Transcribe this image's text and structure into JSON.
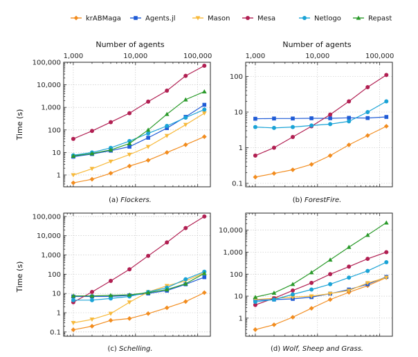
{
  "legend": {
    "placement": "top",
    "entries": [
      {
        "name": "krABMaga",
        "color": "#f28c1e",
        "marker": "diamond"
      },
      {
        "name": "Agents.jl",
        "color": "#1f5bd6",
        "marker": "square"
      },
      {
        "name": "Mason",
        "color": "#f7b93a",
        "marker": "triangle-down"
      },
      {
        "name": "Mesa",
        "color": "#b11f52",
        "marker": "circle"
      },
      {
        "name": "Netlogo",
        "color": "#1aa3d6",
        "marker": "circle"
      },
      {
        "name": "Repast",
        "color": "#2a9a2a",
        "marker": "triangle-up"
      }
    ]
  },
  "chart_data": [
    {
      "type": "line",
      "title": "",
      "caption_prefix": "(a)",
      "caption_name": "Flockers.",
      "xlabel": "Number of agents",
      "ylabel": "Time (s)",
      "xscale": "log",
      "yscale": "log",
      "xlim": [
        700,
        160000
      ],
      "ylim": [
        0.3,
        100000
      ],
      "xticks": [
        1000,
        10000,
        100000
      ],
      "xtick_labels": [
        "1,000",
        "10,000",
        "100,000"
      ],
      "yticks": [
        1,
        10,
        100,
        1000,
        10000,
        100000
      ],
      "ytick_labels": [
        "1",
        "10",
        "100",
        "1,000",
        "10,000",
        "100,000"
      ],
      "grid": true,
      "x": [
        1000,
        2000,
        4000,
        8000,
        16000,
        32000,
        64000,
        128000
      ],
      "series": [
        {
          "name": "krABMaga",
          "values": [
            0.45,
            0.65,
            1.2,
            2.5,
            4.5,
            10,
            22,
            50
          ]
        },
        {
          "name": "Agents.jl",
          "values": [
            6.5,
            8.5,
            12,
            18,
            45,
            120,
            380,
            1300
          ]
        },
        {
          "name": "Mason",
          "values": [
            1,
            1.9,
            4,
            8,
            18,
            55,
            170,
            550
          ]
        },
        {
          "name": "Mesa",
          "values": [
            40,
            90,
            220,
            550,
            1800,
            5500,
            25000,
            70000
          ]
        },
        {
          "name": "Netlogo",
          "values": [
            7.5,
            10,
            16,
            32,
            70,
            150,
            350,
            800
          ]
        },
        {
          "name": "Repast",
          "values": [
            7,
            9,
            13,
            25,
            100,
            500,
            2200,
            5000
          ]
        }
      ]
    },
    {
      "type": "line",
      "title": "",
      "caption_prefix": "(b)",
      "caption_name": "ForestFire.",
      "xlabel": "Number of agents",
      "ylabel": "",
      "xscale": "log",
      "yscale": "log",
      "xlim": [
        700,
        160000
      ],
      "ylim": [
        0.08,
        250
      ],
      "xticks": [
        1000,
        10000,
        100000
      ],
      "xtick_labels": [
        "1,000",
        "10,000",
        "100,000"
      ],
      "yticks": [
        0.1,
        1,
        10,
        100
      ],
      "ytick_labels": [
        "0.1",
        "1",
        "10",
        "100"
      ],
      "grid": true,
      "x": [
        1000,
        2000,
        4000,
        8000,
        16000,
        32000,
        64000,
        128000
      ],
      "series": [
        {
          "name": "krABMaga",
          "values": [
            0.15,
            0.19,
            0.24,
            0.34,
            0.6,
            1.2,
            2.2,
            4
          ]
        },
        {
          "name": "Agents.jl",
          "values": [
            6.5,
            6.6,
            6.6,
            6.7,
            6.7,
            6.9,
            6.8,
            7.3
          ]
        },
        {
          "name": "Mesa",
          "values": [
            0.6,
            1,
            2,
            4,
            8.5,
            20,
            50,
            110
          ]
        },
        {
          "name": "Netlogo",
          "values": [
            3.8,
            3.6,
            3.8,
            4.2,
            4.6,
            5.5,
            10,
            20
          ]
        }
      ]
    },
    {
      "type": "line",
      "title": "",
      "caption_prefix": "(c)",
      "caption_name": "Schelling.",
      "xlabel": "",
      "ylabel": "Time (s)",
      "xscale": "log",
      "yscale": "log",
      "xlim": [
        700,
        160000
      ],
      "ylim": [
        0.06,
        150000
      ],
      "xticks": [
        1000,
        10000,
        100000
      ],
      "xtick_labels": [
        "",
        "",
        ""
      ],
      "yticks": [
        0.1,
        1,
        10,
        100,
        1000,
        10000,
        100000
      ],
      "ytick_labels": [
        "0.1",
        "1",
        "10",
        "100",
        "1,000",
        "10,000",
        "100,000"
      ],
      "grid": true,
      "x": [
        1000,
        2000,
        4000,
        8000,
        16000,
        32000,
        64000,
        128000
      ],
      "series": [
        {
          "name": "krABMaga",
          "values": [
            0.13,
            0.2,
            0.4,
            0.5,
            0.9,
            1.8,
            3.8,
            11
          ]
        },
        {
          "name": "Agents.jl",
          "values": [
            7,
            7,
            7,
            8,
            10,
            14,
            30,
            70
          ]
        },
        {
          "name": "Mason",
          "values": [
            0.3,
            0.45,
            0.9,
            3.5,
            12,
            25,
            45,
            120
          ]
        },
        {
          "name": "Mesa",
          "values": [
            3.5,
            12,
            45,
            180,
            900,
            4500,
            25000,
            100000
          ]
        },
        {
          "name": "Netlogo",
          "values": [
            4.5,
            4.5,
            5.5,
            7,
            12,
            20,
            55,
            135
          ]
        },
        {
          "name": "Repast",
          "values": [
            7.5,
            7.5,
            8,
            8.5,
            11,
            16,
            32,
            110
          ]
        }
      ]
    },
    {
      "type": "line",
      "title": "",
      "caption_prefix": "(d)",
      "caption_name": "Wolf, Sheep and Grass.",
      "xlabel": "",
      "ylabel": "",
      "xscale": "log",
      "yscale": "log",
      "xlim": [
        700,
        160000
      ],
      "ylim": [
        0.15,
        60000
      ],
      "xticks": [
        1000,
        10000,
        100000
      ],
      "xtick_labels": [
        "",
        "",
        ""
      ],
      "yticks": [
        1,
        10,
        100,
        1000,
        10000
      ],
      "ytick_labels": [
        "1",
        "10",
        "100",
        "1,000",
        "10,000"
      ],
      "grid": true,
      "x": [
        1000,
        2000,
        4000,
        8000,
        16000,
        32000,
        64000,
        128000
      ],
      "series": [
        {
          "name": "krABMaga",
          "values": [
            0.3,
            0.5,
            1.1,
            2.8,
            7,
            15,
            30,
            70
          ]
        },
        {
          "name": "Agents.jl",
          "values": [
            6.5,
            7,
            7.5,
            9,
            13,
            20,
            35,
            75
          ]
        },
        {
          "name": "Mason",
          "values": [
            7,
            8,
            9,
            10,
            13,
            18,
            40,
            70
          ]
        },
        {
          "name": "Mesa",
          "values": [
            4,
            8,
            18,
            40,
            100,
            220,
            500,
            1000
          ]
        },
        {
          "name": "Netlogo",
          "values": [
            5.5,
            7,
            12,
            20,
            35,
            70,
            140,
            350
          ]
        },
        {
          "name": "Repast",
          "values": [
            9,
            14,
            35,
            120,
            450,
            1700,
            6000,
            22000
          ]
        }
      ]
    }
  ]
}
